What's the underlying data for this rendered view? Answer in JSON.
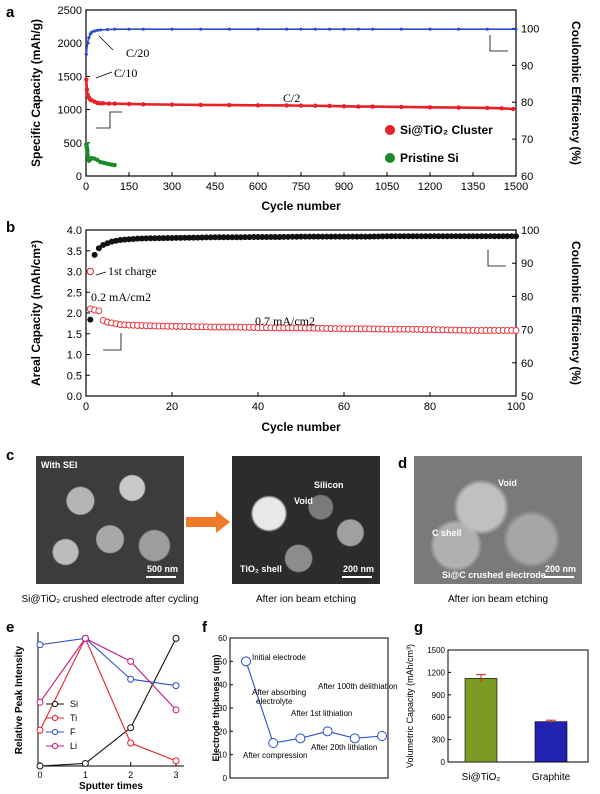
{
  "panels": {
    "a": "a",
    "b": "b",
    "c": "c",
    "d": "d",
    "e": "e",
    "f": "f",
    "g": "g"
  },
  "chart_data": [
    {
      "id": "a",
      "type": "scatter",
      "xlabel": "Cycle number",
      "ylabel": "Specific Capacity (mAh/g)",
      "y2label": "Coulombic Efficiency (%)",
      "xlim": [
        0,
        1500
      ],
      "ylim": [
        0,
        2500
      ],
      "y2lim": [
        60,
        105
      ],
      "xticks": [
        "0",
        "150",
        "300",
        "450",
        "600",
        "750",
        "900",
        "1050",
        "1200",
        "1350",
        "1500"
      ],
      "yticks": [
        "0",
        "500",
        "1000",
        "1500",
        "2000",
        "2500"
      ],
      "y2ticks": [
        "60",
        "70",
        "80",
        "90",
        "100"
      ],
      "annotations": [
        "C/20",
        "C/10",
        "C/2"
      ],
      "legend_position": "bottom-right",
      "series": [
        {
          "name": "Si@TiO₂ Cluster",
          "color": "#e8202a",
          "axis": "left",
          "x": [
            1,
            3,
            6,
            10,
            15,
            20,
            30,
            40,
            50,
            60,
            80,
            100,
            150,
            200,
            300,
            400,
            500,
            600,
            700,
            750,
            800,
            850,
            900,
            950,
            1000,
            1100,
            1200,
            1300,
            1400,
            1450,
            1490
          ],
          "y": [
            1450,
            1300,
            1220,
            1180,
            1150,
            1140,
            1120,
            1100,
            1095,
            1095,
            1090,
            1090,
            1085,
            1080,
            1075,
            1070,
            1068,
            1065,
            1062,
            1060,
            1058,
            1055,
            1050,
            1045,
            1045,
            1040,
            1035,
            1030,
            1025,
            1020,
            1010
          ]
        },
        {
          "name": "Pristine Si",
          "color": "#1a8a2a",
          "axis": "left",
          "x": [
            1,
            2,
            3,
            4,
            5,
            6,
            8,
            10,
            15,
            20,
            30,
            40,
            50,
            60,
            70,
            80,
            90,
            100
          ],
          "y": [
            480,
            460,
            430,
            400,
            370,
            320,
            270,
            230,
            250,
            270,
            260,
            240,
            210,
            200,
            190,
            180,
            170,
            165
          ]
        },
        {
          "name": "",
          "color": "#2a4ecb",
          "axis": "right",
          "x": [
            1,
            5,
            10,
            15,
            20,
            30,
            40,
            50,
            75,
            100,
            150,
            200,
            300,
            400,
            500,
            600,
            700,
            750,
            800,
            850,
            900,
            950,
            1000,
            1100,
            1200,
            1300,
            1400,
            1500
          ],
          "y": [
            93,
            96,
            97.5,
            98.5,
            99,
            99.3,
            99.5,
            99.6,
            99.7,
            99.8,
            99.8,
            99.8,
            99.8,
            99.8,
            99.8,
            99.8,
            99.8,
            99.8,
            99.8,
            99.8,
            99.8,
            99.8,
            99.8,
            99.8,
            99.8,
            99.8,
            99.8,
            99.8
          ]
        }
      ]
    },
    {
      "id": "b",
      "type": "scatter",
      "xlabel": "Cycle number",
      "ylabel": "Areal Capacity (mAh/cm²)",
      "y2label": "Coulombic Efficiency (%)",
      "xlim": [
        0,
        100
      ],
      "ylim": [
        0,
        4.0
      ],
      "y2lim": [
        50,
        100
      ],
      "xticks": [
        "0",
        "20",
        "40",
        "60",
        "80",
        "100"
      ],
      "yticks": [
        "0.0",
        "0.5",
        "1.0",
        "1.5",
        "2.0",
        "2.5",
        "3.0",
        "3.5",
        "4.0"
      ],
      "y2ticks": [
        "50",
        "60",
        "70",
        "80",
        "90",
        "100"
      ],
      "annotations": [
        "1st charge",
        "0.2 mA/cm2",
        "0.7 mA/cm2"
      ],
      "series": [
        {
          "name": "Areal capacity",
          "color": "#e8202a",
          "axis": "left",
          "marker": "open-circle",
          "first_charge": {
            "x": 1,
            "y": 3.0
          },
          "x": [
            1,
            2,
            3,
            4,
            5,
            6,
            7,
            8,
            10,
            12,
            15,
            20,
            25,
            30,
            35,
            40,
            45,
            50,
            55,
            60,
            65,
            70,
            75,
            80,
            85,
            90,
            95,
            100
          ],
          "y": [
            2.1,
            2.07,
            2.05,
            1.82,
            1.78,
            1.76,
            1.74,
            1.72,
            1.71,
            1.7,
            1.69,
            1.68,
            1.67,
            1.66,
            1.66,
            1.65,
            1.64,
            1.64,
            1.63,
            1.62,
            1.62,
            1.61,
            1.61,
            1.6,
            1.59,
            1.58,
            1.58,
            1.58
          ]
        },
        {
          "name": "Coulombic efficiency",
          "color": "#111111",
          "axis": "right",
          "marker": "filled-circle",
          "x": [
            1,
            2,
            3,
            4,
            5,
            6,
            8,
            10,
            12,
            15,
            20,
            25,
            30,
            35,
            40,
            45,
            50,
            55,
            60,
            65,
            70,
            75,
            80,
            85,
            90,
            95,
            100
          ],
          "y": [
            73,
            92.5,
            94.5,
            95.5,
            96,
            96.5,
            97,
            97.2,
            97.4,
            97.5,
            97.6,
            97.7,
            97.8,
            97.8,
            97.9,
            97.9,
            98,
            98,
            98,
            98,
            98.1,
            98.1,
            98.1,
            98.1,
            98.1,
            98.1,
            98.1
          ]
        }
      ]
    },
    {
      "id": "e",
      "type": "line",
      "xlabel": "Sputter times",
      "ylabel": "Relative Peak Intensity",
      "xlim": [
        0,
        3
      ],
      "ylim": [
        0,
        1.05
      ],
      "xticks": [
        "0",
        "1",
        "2",
        "3"
      ],
      "categories": [
        0,
        1,
        2,
        3
      ],
      "legend_position": "inside-left",
      "series": [
        {
          "name": "Si",
          "color": "#111111",
          "values": [
            0,
            0.02,
            0.3,
            1.0
          ]
        },
        {
          "name": "Ti",
          "color": "#e8202a",
          "values": [
            0.28,
            1.0,
            0.18,
            0.04
          ]
        },
        {
          "name": "F",
          "color": "#2a4ecb",
          "values": [
            0.95,
            1.0,
            0.68,
            0.63
          ]
        },
        {
          "name": "Li",
          "color": "#c2197e",
          "values": [
            0.5,
            1.0,
            0.82,
            0.44
          ]
        }
      ]
    },
    {
      "id": "f",
      "type": "line",
      "ylabel": "Electrode thickness (um)",
      "ylim": [
        0,
        60
      ],
      "yticks": [
        "0",
        "10",
        "20",
        "30",
        "40",
        "50",
        "60"
      ],
      "color": "#2a4ecb",
      "x": [
        0,
        1,
        2,
        3,
        4,
        5
      ],
      "values": [
        50,
        15,
        17,
        20,
        17,
        18
      ],
      "annotations": [
        "Initial electrode",
        "After compression",
        "After absorbing electrolyte",
        "After 1st lithiation",
        "After 20th lithiation",
        "After 100th delithiation"
      ]
    },
    {
      "id": "g",
      "type": "bar",
      "ylabel": "Volumetric Capacity (mAh/cm³)",
      "ylim": [
        0,
        1500
      ],
      "yticks": [
        "0",
        "300",
        "600",
        "900",
        "1200",
        "1500"
      ],
      "categories": [
        "Si@TiO₂",
        "Graphite"
      ],
      "values": [
        1120,
        540
      ],
      "errors": [
        50,
        20
      ],
      "colors": [
        "#7a9a22",
        "#2222b0"
      ]
    }
  ],
  "images": {
    "c1": {
      "label": "With SEI",
      "scale": "500 nm",
      "caption": "Si@TiO₂ crushed electrode after cycling"
    },
    "c2": {
      "label_void": "Void",
      "label_silicon": "Silicon",
      "label_shell": "TiO₂ shell",
      "scale": "200 nm",
      "caption": "After ion beam etching"
    },
    "d": {
      "label_void": "Void",
      "label_shell": "C shell",
      "label_bottom": "Si@C crushed electrode",
      "scale": "200 nm",
      "caption": "After ion beam etching"
    }
  }
}
